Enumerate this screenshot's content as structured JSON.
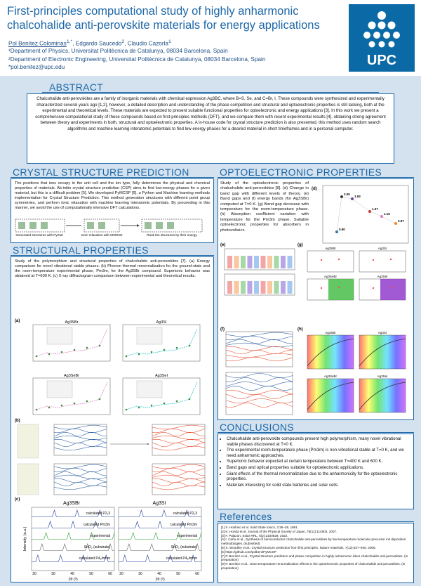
{
  "header": {
    "title": "First-principles computational study of highly anharmonic chalcohalide anti-perovskite materials for energy applications",
    "authors": [
      {
        "name": "Pol Benítez Colominas",
        "sup": "1,*"
      },
      {
        "name": "Edgardo Saucedo",
        "sup": "2"
      },
      {
        "name": "Claudio Cazorla",
        "sup": "1"
      }
    ],
    "affiliations": [
      "¹Department of Physics, Universitat Politècnica de Catalunya, 08034 Barcelona, Spain",
      "²Department of Electronic Engineering, Universitat Politècnica de Catalunya, 08034 Barcelona, Spain"
    ],
    "email": "*pol.benitez@upc.edu",
    "logo": "UPC"
  },
  "abstract": {
    "heading": "ABSTRACT",
    "text": "Chalcohalide anti-perovskites are a family of inorganic materials with chemical expression Ag3BC, where B=S, Se, and C=Br, I. These compounds were synthesized and experimentally characterized several years ago [1,2], however, a detailed description and understanding of the phase competition and structural and optoelectronic properties is still lacking, both at the experimental and theoretical levels. These materials are expected to present suitable functional properties for optoelectronic and energy applications [3]. In this work we present a comprehensive computational study of these compounds based on first-principles methods (DFT), and we compare them with recent experimental results [4], obtaining strong agreement between theory and experiments in both, structural and optoelectronic properties. A in-house code for crystal structure prediction is also presented, this method uses random search algorithms and machine learning interatomic potentials to find low energy phases for a desired material in short timeframes and in a personal computer."
  },
  "crystal": {
    "heading": "CRYSTAL STRUCTURE PREDICTION",
    "text": "The positions that ions occupy in the unit cell and the ion type, fully determines the physical and chemical properties of materials. Ab-initio crystal structure prediction (CSP) aims to find low-energy phases for a given material, but this is a difficult problem [5]. We developed PyMCSP [6], a Python and Machine learning methods implementation for Crystal Structure Prediction. This method generation structures with different point group symmetries, and perform ionic relaxation with machine learning interatomic potentials. By proceeding in this manner, we avoid the use of computationally intensive DFT calculations.",
    "steps": [
      "Generated structures with PyXtal",
      "Ionic relaxation with M3GNet",
      "Rank the structures by their energy"
    ]
  },
  "opto": {
    "heading": "OPTOELECTRONIC PROPERTIES",
    "text": "Study of the optoelectronic properties of chalcohalide anti-perovskites [8]. (d) Change in band gap with different levels of theory. (e) Band gaps and (f) energy bands (for Ag3SBr) computed at T=0 K. (g) Band gap decrease with temperature for the room-temperature phase. (h) Absorption coefficient variation with temperature for the Pm3m phase. Suitable optoelectronic properties for absorbers in photovoltaics.",
    "panels": [
      "(d)",
      "(e)",
      "(f)",
      "(g)",
      "(h)"
    ],
    "materials": [
      "Ag3SBr",
      "Ag3SI",
      "Ag3SeBr",
      "Ag3SeI"
    ],
    "gap_labels": [
      "2.05",
      "1.93",
      "1.37",
      "1.15",
      "0.97",
      "0.90"
    ]
  },
  "structural": {
    "heading": "STRUCTURAL PROPERTIES",
    "text": "Study of the polymorphism and structural properties of chalcohalide anti-perovskites [7]. (a) Energy comparison for novel vibrational stable phases. (b) Phonon thermal renormalization for the ground-state and the room-temperature experimental phase, Pm3m, for the Ag3SBr compound. Superionic behavior was obtained at T=600 K. (c) X-ray diffractogram comparison between experimental and theoretical results.",
    "panels": [
      "(a)",
      "(b)",
      "(c)"
    ],
    "materials": [
      "Ag3SBr",
      "Ag3SI",
      "Ag3SeBr",
      "Ag3SeI"
    ],
    "xrd_labels": [
      "calculated P2₁3",
      "calculated Pm3m",
      "experimental",
      "SnO₂ (substrate)",
      "calculated P4₂/mnm"
    ],
    "xrd_axis": [
      "Intensity (a.u.)",
      "2θ (º)"
    ],
    "xrd_ticks": [
      "20",
      "30",
      "40",
      "50",
      "60"
    ]
  },
  "conclusions": {
    "heading": "CONCLUSIONS",
    "items": [
      "Chalcohalide anti-perovskite compounds present high polymorphism, many novel vibrational stable phases discovered at T=0 K.",
      "The experimental room-temperature phase (Pm3m) is non-vibrational stable at T=0 K, and we need anharmonic approaches.",
      "Superionic behavior expected at certain temperature between T=400 K and 600 K.",
      "Band gaps and optical properties suitable for optoelectronic applications.",
      "Giant effects of the thermal renormalization due to the anharmonicity for the optoelectronic properties.",
      "Materials interesting for solid state batteries and solar cells."
    ]
  },
  "references": {
    "heading": "References",
    "items": [
      "[1] S. Hoshino et al. Solid State Ionics, 3:35–39, 1981.",
      "[2] K. Honda et al. Journal of the Physical Society of Japan, 76(11):114603, 2007.",
      "[3] F. Palazon. Solar RRL, 6(2):2100829, 2022.",
      "[4] I. Caño et al., Synthesis of semiconductor chalcohalide anti-perovskites by low-temperature molecular precursor ink deposition methodologies. (submitted)",
      "[5] S. Woodley et al., Crystal structure prediction from first principles. Nature materials, 7(12):937–946, 2008.",
      "[6] https://github.com/polbeni/PyMCSP",
      "[7] P. Benítez et al., Crystal structure prediction and phase competition in highly anharmonic silver chalcohalide anti-perovskites. (in preparation)",
      "[8] P. Benítez et al., Giant temperature renormalization effects in the optoelectronic properties of chalcohalide anti-perovskites. (in preparation)"
    ]
  }
}
